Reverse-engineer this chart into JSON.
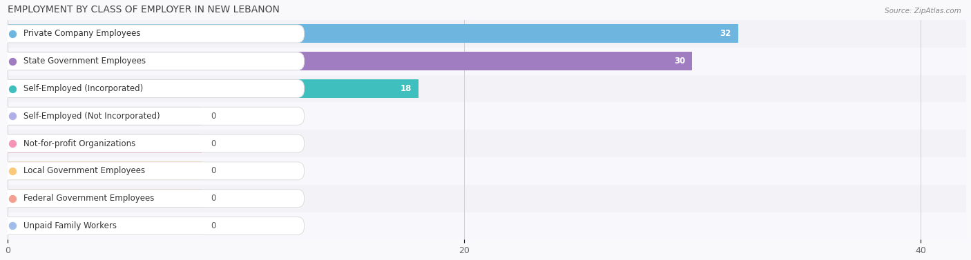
{
  "title": "EMPLOYMENT BY CLASS OF EMPLOYER IN NEW LEBANON",
  "source": "Source: ZipAtlas.com",
  "categories": [
    "Private Company Employees",
    "State Government Employees",
    "Self-Employed (Incorporated)",
    "Self-Employed (Not Incorporated)",
    "Not-for-profit Organizations",
    "Local Government Employees",
    "Federal Government Employees",
    "Unpaid Family Workers"
  ],
  "values": [
    32,
    30,
    18,
    0,
    0,
    0,
    0,
    0
  ],
  "bar_colors": [
    "#6eb5e0",
    "#a07cc0",
    "#40bfbf",
    "#b0b0e8",
    "#f495b8",
    "#fcc87a",
    "#f4a090",
    "#a0bce8"
  ],
  "label_bg_colors": [
    "#eaf4fc",
    "#f0ebf8",
    "#e0f5f5",
    "#ededf8",
    "#fce8f0",
    "#fef4e8",
    "#fce8e8",
    "#e8eef8"
  ],
  "xlim": [
    0,
    42
  ],
  "xticks": [
    0,
    20,
    40
  ],
  "row_bg_light": "#f2f2f7",
  "row_bg_dark": "#f7f7fc",
  "bg_color": "#f9f9fb",
  "title_fontsize": 10,
  "label_fontsize": 8.5,
  "value_fontsize": 8.5,
  "bar_height": 0.68,
  "zero_stub": 8.5
}
